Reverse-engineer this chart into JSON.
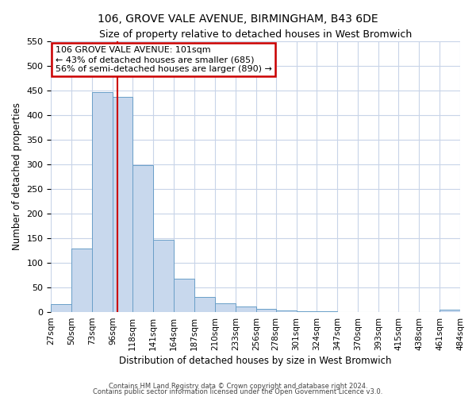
{
  "title": "106, GROVE VALE AVENUE, BIRMINGHAM, B43 6DE",
  "subtitle": "Size of property relative to detached houses in West Bromwich",
  "xlabel": "Distribution of detached houses by size in West Bromwich",
  "ylabel": "Number of detached properties",
  "bar_color": "#c8d8ed",
  "bar_edge_color": "#6a9fc8",
  "vline_color": "#cc0000",
  "vline_x": 101,
  "annotation_text": "106 GROVE VALE AVENUE: 101sqm\n← 43% of detached houses are smaller (685)\n56% of semi-detached houses are larger (890) →",
  "annotation_bbox_color": "white",
  "annotation_bbox_edge": "#cc0000",
  "bin_edges": [
    27,
    50,
    73,
    96,
    118,
    141,
    164,
    187,
    210,
    233,
    256,
    278,
    301,
    324,
    347,
    370,
    393,
    415,
    438,
    461,
    484
  ],
  "bin_counts": [
    15,
    128,
    447,
    436,
    298,
    146,
    68,
    30,
    17,
    10,
    6,
    2,
    1,
    1,
    0,
    0,
    0,
    0,
    0,
    5
  ],
  "ylim": [
    0,
    550
  ],
  "yticks": [
    0,
    50,
    100,
    150,
    200,
    250,
    300,
    350,
    400,
    450,
    500,
    550
  ],
  "tick_labels": [
    "27sqm",
    "50sqm",
    "73sqm",
    "96sqm",
    "118sqm",
    "141sqm",
    "164sqm",
    "187sqm",
    "210sqm",
    "233sqm",
    "256sqm",
    "278sqm",
    "301sqm",
    "324sqm",
    "347sqm",
    "370sqm",
    "393sqm",
    "415sqm",
    "438sqm",
    "461sqm",
    "484sqm"
  ],
  "footer1": "Contains HM Land Registry data © Crown copyright and database right 2024.",
  "footer2": "Contains public sector information licensed under the Open Government Licence v3.0.",
  "bg_color": "#ffffff",
  "grid_color": "#c8d4e8"
}
